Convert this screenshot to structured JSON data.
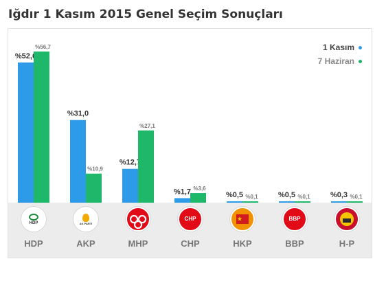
{
  "page": {
    "title": "Iğdır 1 Kasım 2015 Genel Seçim Sonuçları"
  },
  "legend": [
    {
      "label": "1 Kasım",
      "color": "#2e9be8",
      "text_color": "#444444"
    },
    {
      "label": "7 Haziran",
      "color": "#1fb769",
      "text_color": "#888888"
    }
  ],
  "chart_data": {
    "type": "bar",
    "title": "Iğdır 1 Kasım 2015 Genel Seçim Sonuçları",
    "categories": [
      "HDP",
      "AKP",
      "MHP",
      "CHP",
      "HKP",
      "BBP",
      "H-P"
    ],
    "series": [
      {
        "name": "1 Kasım",
        "color": "#2e9be8",
        "values": [
          52.6,
          31.0,
          12.7,
          1.7,
          0.5,
          0.5,
          0.3
        ],
        "labels": [
          "%52,6",
          "%31,0",
          "%12,7",
          "%1,7",
          "%0,5",
          "%0,5",
          "%0,3"
        ]
      },
      {
        "name": "7 Haziran",
        "color": "#1fb769",
        "values": [
          56.7,
          10.9,
          27.1,
          3.6,
          0.1,
          0.1,
          0.1
        ],
        "labels": [
          "%56,7",
          "%10,9",
          "%27,1",
          "%3,6",
          "%0,1",
          "%0,1",
          "%0,1"
        ]
      }
    ],
    "ylim": [
      0,
      56.7
    ],
    "grid": false,
    "legend_position": "top-right"
  },
  "parties": [
    {
      "name": "HDP",
      "icon": "hdp-logo-icon",
      "logo_text": "HDP",
      "bg": "#ffffff",
      "fg": "#1a8a3a"
    },
    {
      "name": "AKP",
      "icon": "akp-logo-icon",
      "logo_text": "AK PARTİ",
      "bg": "#ffffff",
      "fg": "#f2a900"
    },
    {
      "name": "MHP",
      "icon": "mhp-logo-icon",
      "logo_text": "",
      "bg": "#e30a17",
      "fg": "#ffffff"
    },
    {
      "name": "CHP",
      "icon": "chp-logo-icon",
      "logo_text": "CHP",
      "bg": "#e30a17",
      "fg": "#ffffff"
    },
    {
      "name": "HKP",
      "icon": "hkp-logo-icon",
      "logo_text": "",
      "bg": "#f39200",
      "fg": "#d01c1f"
    },
    {
      "name": "BBP",
      "icon": "bbp-logo-icon",
      "logo_text": "BBP",
      "bg": "#e30a17",
      "fg": "#ffffff"
    },
    {
      "name": "H-P",
      "icon": "h-p-logo-icon",
      "logo_text": "",
      "bg": "#c8102e",
      "fg": "#f5c400"
    }
  ]
}
